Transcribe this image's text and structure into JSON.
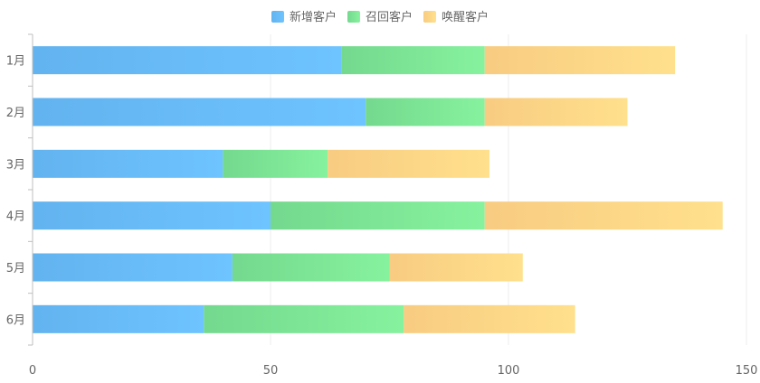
{
  "chart_data": {
    "type": "bar",
    "orientation": "horizontal",
    "stacked": true,
    "categories": [
      "1月",
      "2月",
      "3月",
      "4月",
      "5月",
      "6月"
    ],
    "series": [
      {
        "name": "新增客户",
        "values": [
          65,
          70,
          40,
          50,
          42,
          36
        ],
        "color_start": "#62b3ef",
        "color_end": "#6ec4ff"
      },
      {
        "name": "召回客户",
        "values": [
          30,
          25,
          22,
          45,
          33,
          42
        ],
        "color_start": "#74d98e",
        "color_end": "#86f29e"
      },
      {
        "name": "唤醒客户",
        "values": [
          40,
          30,
          34,
          50,
          28,
          36
        ],
        "color_start": "#f8cc82",
        "color_end": "#ffe08c"
      }
    ],
    "x_axis": {
      "min": 0,
      "max": 150,
      "ticks": [
        "0",
        "50",
        "100",
        "150"
      ],
      "tick_values": [
        0,
        50,
        100,
        150
      ]
    },
    "grid": "vertical",
    "legend_position": "top-center",
    "colors": {
      "axis": "#bfbfbf",
      "grid": "#ececec",
      "text": "#666666"
    }
  }
}
